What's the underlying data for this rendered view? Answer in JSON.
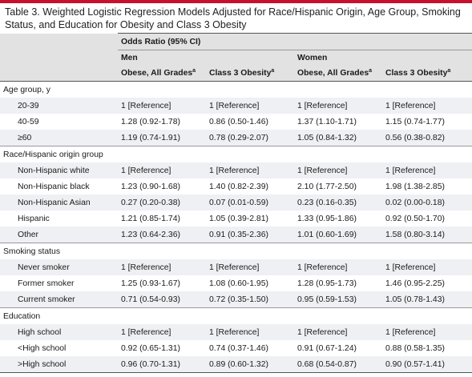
{
  "title": "Table 3. Weighted Logistic Regression Models Adjusted for Race/Hispanic Origin, Age Group, Smoking Status, and Education for Obesity and Class 3 Obesity",
  "header": {
    "span_label": "Odds Ratio (95% CI)",
    "group_men": "Men",
    "group_women": "Women",
    "col_obese": "Obese, All Grades",
    "col_class3": "Class 3 Obesity",
    "footnote_mark": "a"
  },
  "sections": [
    {
      "label": "Age group, y",
      "rows": [
        {
          "label": "20-39",
          "values": [
            "1 [Reference]",
            "1 [Reference]",
            "1 [Reference]",
            "1 [Reference]"
          ]
        },
        {
          "label": "40-59",
          "values": [
            "1.28 (0.92-1.78)",
            "0.86 (0.50-1.46)",
            "1.37 (1.10-1.71)",
            "1.15 (0.74-1.77)"
          ]
        },
        {
          "label": "≥60",
          "values": [
            "1.19 (0.74-1.91)",
            "0.78 (0.29-2.07)",
            "1.05 (0.84-1.32)",
            "0.56 (0.38-0.82)"
          ]
        }
      ]
    },
    {
      "label": "Race/Hispanic origin group",
      "rows": [
        {
          "label": "Non-Hispanic white",
          "values": [
            "1 [Reference]",
            "1 [Reference]",
            "1 [Reference]",
            "1 [Reference]"
          ]
        },
        {
          "label": "Non-Hispanic black",
          "values": [
            "1.23 (0.90-1.68)",
            "1.40 (0.82-2.39)",
            "2.10 (1.77-2.50)",
            "1.98 (1.38-2.85)"
          ]
        },
        {
          "label": "Non-Hispanic Asian",
          "values": [
            "0.27 (0.20-0.38)",
            "0.07 (0.01-0.59)",
            "0.23 (0.16-0.35)",
            "0.02 (0.00-0.18)"
          ]
        },
        {
          "label": "Hispanic",
          "values": [
            "1.21 (0.85-1.74)",
            "1.05 (0.39-2.81)",
            "1.33 (0.95-1.86)",
            "0.92 (0.50-1.70)"
          ]
        },
        {
          "label": "Other",
          "values": [
            "1.23 (0.64-2.36)",
            "0.91 (0.35-2.36)",
            "1.01 (0.60-1.69)",
            "1.58 (0.80-3.14)"
          ]
        }
      ]
    },
    {
      "label": "Smoking status",
      "rows": [
        {
          "label": "Never smoker",
          "values": [
            "1 [Reference]",
            "1 [Reference]",
            "1 [Reference]",
            "1 [Reference]"
          ]
        },
        {
          "label": "Former smoker",
          "values": [
            "1.25 (0.93-1.67)",
            "1.08 (0.60-1.95)",
            "1.28 (0.95-1.73)",
            "1.46 (0.95-2.25)"
          ]
        },
        {
          "label": "Current smoker",
          "values": [
            "0.71 (0.54-0.93)",
            "0.72 (0.35-1.50)",
            "0.95 (0.59-1.53)",
            "1.05 (0.78-1.43)"
          ]
        }
      ]
    },
    {
      "label": "Education",
      "rows": [
        {
          "label": "High school",
          "values": [
            "1 [Reference]",
            "1 [Reference]",
            "1 [Reference]",
            "1 [Reference]"
          ]
        },
        {
          "label": "<High school",
          "values": [
            "0.92 (0.65-1.31)",
            "0.74 (0.37-1.46)",
            "0.91 (0.67-1.24)",
            "0.88 (0.58-1.35)"
          ]
        },
        {
          "label": ">High school",
          "values": [
            "0.96 (0.70-1.31)",
            "0.89 (0.60-1.32)",
            "0.68 (0.54-0.87)",
            "0.90 (0.57-1.41)"
          ]
        }
      ]
    }
  ],
  "colors": {
    "accent": "#c8102e",
    "header_bg": "#e2e2e2",
    "alt_row": "#eef0f4"
  }
}
